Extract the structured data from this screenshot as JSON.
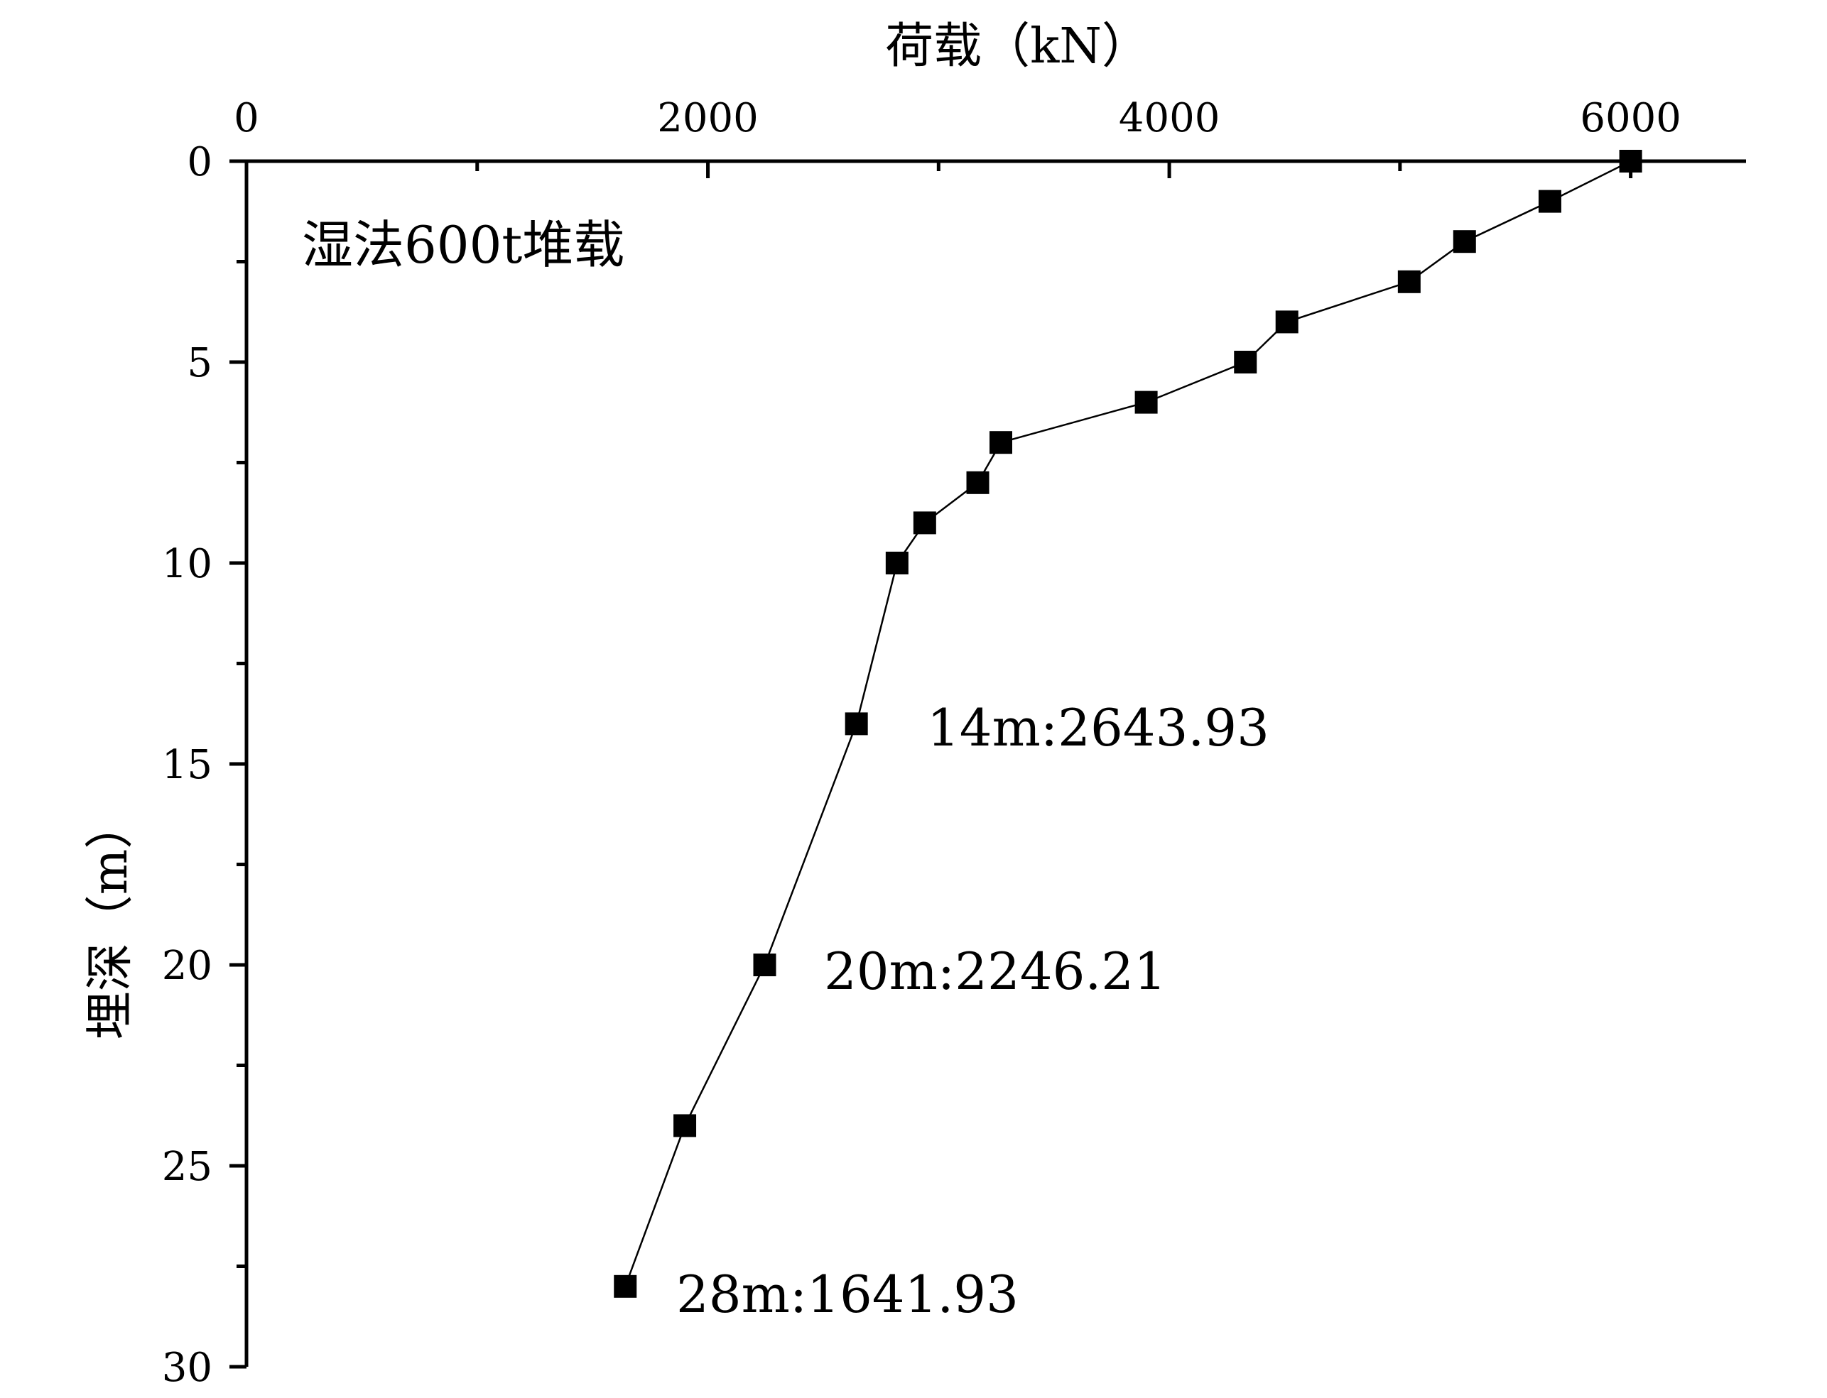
{
  "chart_data": {
    "type": "scatter",
    "title": "",
    "xlabel": "荷载（kN）",
    "ylabel": "埋深（m）",
    "xlim": [
      0,
      6500
    ],
    "ylim": [
      0,
      30
    ],
    "y_inverted": true,
    "x_axis_position": "top",
    "x_ticks": [
      "0",
      "2000",
      "4000",
      "6000"
    ],
    "y_ticks": [
      "0",
      "5",
      "10",
      "15",
      "20",
      "25",
      "30"
    ],
    "grid": false,
    "legend": "none",
    "annotations": [
      {
        "text": "湿法600t堆载"
      },
      {
        "text": "14m:2643.93"
      },
      {
        "text": "20m:2246.21"
      },
      {
        "text": "28m:1641.93"
      }
    ],
    "series": [
      {
        "marker": "square",
        "color": "#000000",
        "x": [
          6000,
          5650,
          5280,
          5040,
          4510,
          4330,
          3900,
          3270,
          3170,
          2940,
          2820,
          2643.93,
          2246.21,
          1900,
          1641.93
        ],
        "y": [
          0,
          1,
          2,
          3,
          4,
          5,
          6,
          7,
          8,
          9,
          10,
          14,
          20,
          24,
          28
        ]
      }
    ]
  }
}
